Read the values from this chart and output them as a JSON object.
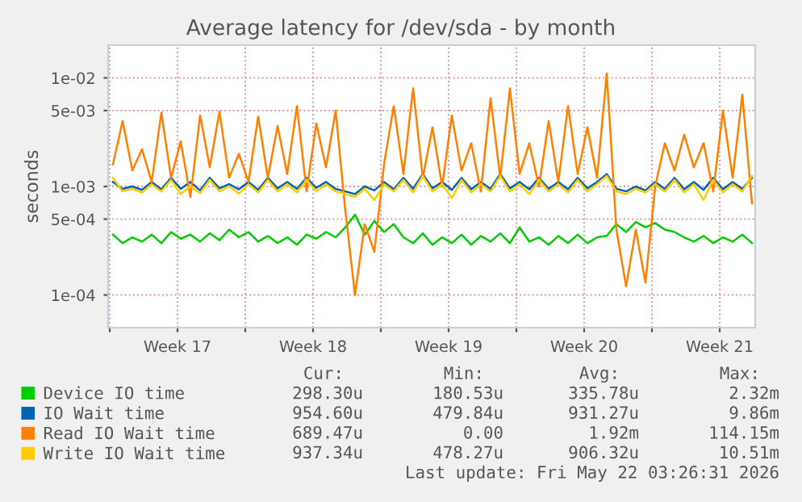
{
  "chart_data": {
    "type": "line",
    "title": "Average latency for /dev/sda - by month",
    "ylabel": "seconds",
    "log": true,
    "grid": true,
    "legend": "bottom",
    "line_style": "solid",
    "marker": "none",
    "xlim": [
      "2026-04-19T22:00",
      "2026-05-23T08:00"
    ],
    "xticks": [
      {
        "value": "2026-04-20",
        "label": null
      },
      {
        "value": "2026-04-23T12:00",
        "label": "Week 17"
      },
      {
        "value": "2026-04-27",
        "label": null
      },
      {
        "value": "2026-04-30T12:00",
        "label": "Week 18"
      },
      {
        "value": "2026-05-04",
        "label": null
      },
      {
        "value": "2026-05-07T12:00",
        "label": "Week 19"
      },
      {
        "value": "2026-05-11",
        "label": null
      },
      {
        "value": "2026-05-14T12:00",
        "label": "Week 20"
      },
      {
        "value": "2026-05-18",
        "label": null
      },
      {
        "value": "2026-05-21T12:00",
        "label": "Week 21"
      }
    ],
    "ylim": [
      5e-05,
      0.02
    ],
    "yticks": [
      {
        "value": 0.0001,
        "label": "1e-04"
      },
      {
        "value": 0.0005,
        "label": "5e-04"
      },
      {
        "value": 0.001,
        "label": "1e-03"
      },
      {
        "value": 0.005,
        "label": "5e-03"
      },
      {
        "value": 0.01,
        "label": "1e-02"
      }
    ],
    "x": [
      "2026-04-20T04:00",
      "2026-04-20T16:00",
      "2026-04-21T04:00",
      "2026-04-21T16:00",
      "2026-04-22T04:00",
      "2026-04-22T16:00",
      "2026-04-23T04:00",
      "2026-04-23T16:00",
      "2026-04-24T04:00",
      "2026-04-24T16:00",
      "2026-04-25T04:00",
      "2026-04-25T16:00",
      "2026-04-26T04:00",
      "2026-04-26T16:00",
      "2026-04-27T04:00",
      "2026-04-27T16:00",
      "2026-04-28T04:00",
      "2026-04-28T16:00",
      "2026-04-29T04:00",
      "2026-04-29T16:00",
      "2026-04-30T04:00",
      "2026-04-30T16:00",
      "2026-05-01T04:00",
      "2026-05-01T16:00",
      "2026-05-02T04:00",
      "2026-05-02T16:00",
      "2026-05-03T04:00",
      "2026-05-03T16:00",
      "2026-05-04T04:00",
      "2026-05-04T16:00",
      "2026-05-05T04:00",
      "2026-05-05T16:00",
      "2026-05-06T04:00",
      "2026-05-06T16:00",
      "2026-05-07T04:00",
      "2026-05-07T16:00",
      "2026-05-08T04:00",
      "2026-05-08T16:00",
      "2026-05-09T04:00",
      "2026-05-09T16:00",
      "2026-05-10T04:00",
      "2026-05-10T16:00",
      "2026-05-11T04:00",
      "2026-05-11T16:00",
      "2026-05-12T04:00",
      "2026-05-12T16:00",
      "2026-05-13T04:00",
      "2026-05-13T16:00",
      "2026-05-14T04:00",
      "2026-05-14T16:00",
      "2026-05-15T04:00",
      "2026-05-15T16:00",
      "2026-05-16T04:00",
      "2026-05-16T16:00",
      "2026-05-17T04:00",
      "2026-05-17T16:00",
      "2026-05-18T04:00",
      "2026-05-18T16:00",
      "2026-05-19T04:00",
      "2026-05-19T16:00",
      "2026-05-20T04:00",
      "2026-05-20T16:00",
      "2026-05-21T04:00",
      "2026-05-21T16:00",
      "2026-05-22T04:00",
      "2026-05-22T16:00",
      "2026-05-23T04:00"
    ],
    "series": [
      {
        "name": "Device IO time",
        "color": "#00cc00",
        "values": [
          0.00036,
          0.0003,
          0.00034,
          0.00031,
          0.00036,
          0.0003,
          0.00038,
          0.00033,
          0.00036,
          0.00031,
          0.00037,
          0.00032,
          0.0004,
          0.00034,
          0.00038,
          0.00031,
          0.00035,
          0.0003,
          0.00034,
          0.00029,
          0.00036,
          0.00033,
          0.00038,
          0.00034,
          0.00042,
          0.00055,
          0.00036,
          0.00048,
          0.00038,
          0.00045,
          0.00034,
          0.0003,
          0.00037,
          0.00029,
          0.00034,
          0.0003,
          0.00036,
          0.00029,
          0.00035,
          0.00031,
          0.00037,
          0.0003,
          0.00042,
          0.00031,
          0.00034,
          0.00029,
          0.00035,
          0.0003,
          0.00036,
          0.0003,
          0.00034,
          0.00035,
          0.00045,
          0.00038,
          0.00047,
          0.00042,
          0.00046,
          0.0004,
          0.00038,
          0.00034,
          0.00031,
          0.00035,
          0.0003,
          0.00034,
          0.00031,
          0.00036,
          0.0003
        ]
      },
      {
        "name": "IO Wait time",
        "color": "#0066b3",
        "values": [
          0.0011,
          0.00095,
          0.001,
          0.00093,
          0.0011,
          0.00094,
          0.0012,
          0.00095,
          0.0011,
          0.00092,
          0.0012,
          0.00096,
          0.00105,
          0.00094,
          0.0011,
          0.00093,
          0.0012,
          0.00096,
          0.0011,
          0.00095,
          0.0012,
          0.00097,
          0.0011,
          0.00095,
          0.0009,
          0.00085,
          0.001,
          0.00092,
          0.0011,
          0.00094,
          0.0012,
          0.00095,
          0.0013,
          0.00096,
          0.0011,
          0.00093,
          0.0012,
          0.00094,
          0.0011,
          0.00095,
          0.0013,
          0.00096,
          0.0011,
          0.00094,
          0.0012,
          0.00095,
          0.0011,
          0.00094,
          0.0012,
          0.00096,
          0.0011,
          0.0013,
          0.00095,
          0.0009,
          0.001,
          0.00092,
          0.0011,
          0.00095,
          0.0012,
          0.00094,
          0.0011,
          0.00093,
          0.0012,
          0.00094,
          0.0011,
          0.00095,
          0.0012
        ]
      },
      {
        "name": "Read IO Wait time",
        "color": "#ff8000",
        "values": [
          0.0016,
          0.004,
          0.0014,
          0.0022,
          0.0011,
          0.0048,
          0.0012,
          0.0026,
          0.0008,
          0.0045,
          0.0015,
          0.0049,
          0.0012,
          0.002,
          0.0011,
          0.0044,
          0.0012,
          0.0036,
          0.0013,
          0.0055,
          0.0009,
          0.0038,
          0.0015,
          0.005,
          0.0006,
          0.0001,
          0.00045,
          0.00025,
          0.0016,
          0.0055,
          0.0013,
          0.008,
          0.0012,
          0.0035,
          0.001,
          0.0045,
          0.0014,
          0.0025,
          0.0009,
          0.0065,
          0.0012,
          0.008,
          0.0013,
          0.0025,
          0.001,
          0.004,
          0.0011,
          0.0055,
          0.0013,
          0.0035,
          0.0012,
          0.011,
          0.0004,
          0.00012,
          0.0004,
          0.00013,
          0.001,
          0.0025,
          0.0014,
          0.003,
          0.0015,
          0.0025,
          0.0009,
          0.005,
          0.0012,
          0.007,
          0.0007
        ]
      },
      {
        "name": "Write IO Wait time",
        "color": "#ffcc00",
        "values": [
          0.0012,
          0.0009,
          0.00095,
          0.00088,
          0.00105,
          0.0009,
          0.00115,
          0.00085,
          0.001,
          0.00087,
          0.00115,
          0.0009,
          0.001,
          0.00086,
          0.00105,
          0.00088,
          0.00115,
          0.0009,
          0.00105,
          0.00088,
          0.00115,
          0.0009,
          0.00105,
          0.0009,
          0.00085,
          0.0008,
          0.00095,
          0.00075,
          0.00105,
          0.0009,
          0.00115,
          0.00088,
          0.00125,
          0.0009,
          0.00105,
          0.00078,
          0.00115,
          0.00088,
          0.00105,
          0.0009,
          0.00125,
          0.0009,
          0.00105,
          0.00085,
          0.00115,
          0.0009,
          0.00105,
          0.00088,
          0.00115,
          0.0009,
          0.00105,
          0.00125,
          0.0009,
          0.00085,
          0.00095,
          0.00088,
          0.00105,
          0.0009,
          0.00115,
          0.00088,
          0.00105,
          0.00075,
          0.00115,
          0.00088,
          0.00105,
          0.0009,
          0.00125
        ]
      }
    ],
    "annotations": [
      "Cur:",
      "Min:",
      "Avg:",
      "Max:",
      "298.30u",
      "180.53u",
      "335.78u",
      "2.32m",
      "954.60u",
      "479.84u",
      "931.27u",
      "9.86m",
      "689.47u",
      "0.00",
      "1.92m",
      "114.15m",
      "937.34u",
      "478.27u",
      "906.32u",
      "10.51m",
      "Last update: Fri May 22 03:26:31 2026"
    ]
  }
}
